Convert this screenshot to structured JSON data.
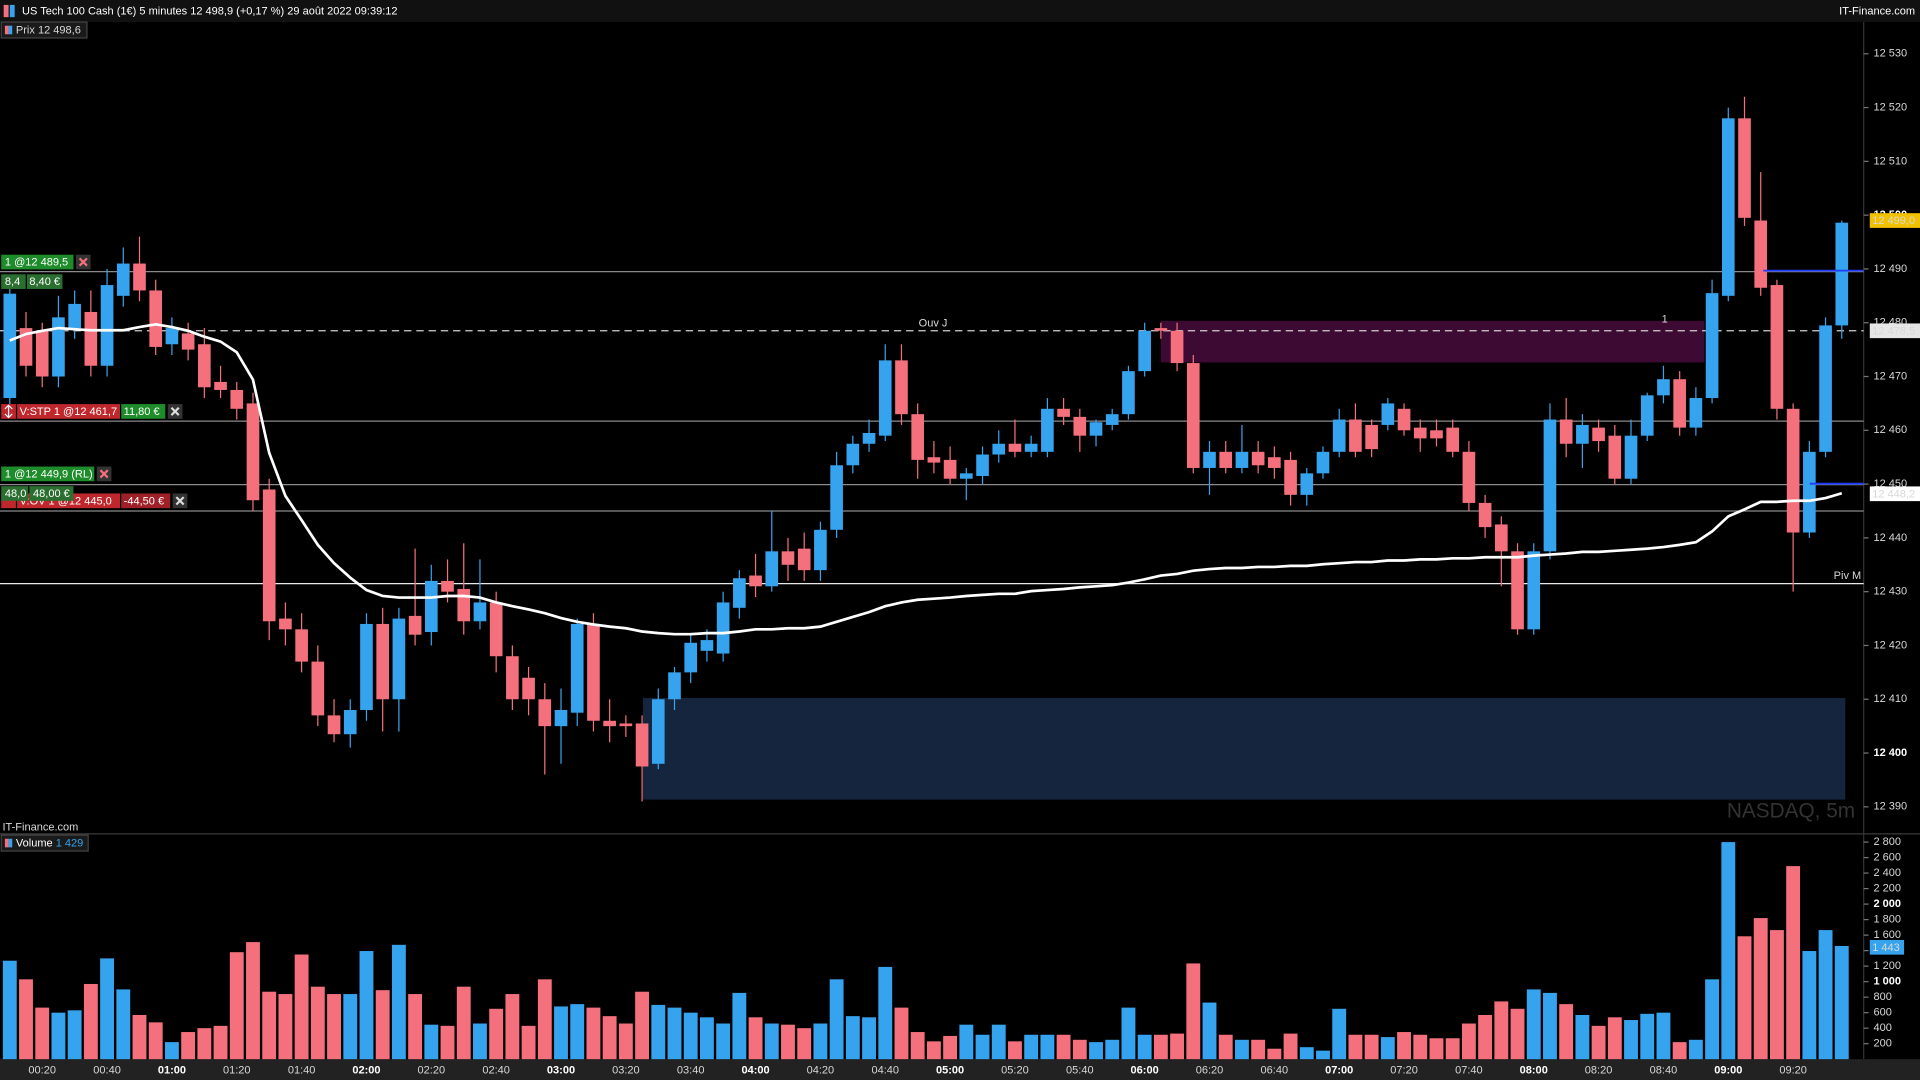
{
  "header": {
    "title": "US Tech 100 Cash (1€) 5 minutes 12 498,9 (+0,17 %) 29 août 2022 09:39:12",
    "brand": "IT-Finance.com"
  },
  "orders": [
    {
      "label": "1 @12 489,5",
      "points": "8,4",
      "amount": "8,40 €"
    },
    {
      "label": "V:STP 1 @12 461,7",
      "amount": "11,80 €"
    },
    {
      "label": "1 @12 449,9 (RL)",
      "points": "48,0",
      "amount": "48,00 €"
    },
    {
      "label": "V:OV 1 @12 445,0",
      "amount": "-44,50 €"
    }
  ],
  "chart_data": [
    {
      "type": "candlestick",
      "legend": "Prix",
      "legend_value": "12 498,6",
      "watermark": "NASDAQ, 5m",
      "source": "IT-Finance.com",
      "zone_labels": [
        "1",
        "2"
      ],
      "up_color": "#36a3ee",
      "down_color": "#f4707c",
      "open": [
        12466,
        12479,
        12478.5,
        12470,
        12479,
        12482,
        12472,
        12485,
        12491,
        12486,
        12476,
        12478,
        12476,
        12469,
        12467.5,
        12465,
        12449,
        12425,
        12423,
        12417,
        12407,
        12403.5,
        12408,
        12424,
        12410,
        12425.5,
        12422.5,
        12432,
        12430.5,
        12424.5,
        12428,
        12418,
        12414,
        12410,
        12405,
        12407.5,
        12424,
        12406,
        12405.5,
        12405.5,
        12398,
        12410,
        12415,
        12419,
        12418.5,
        12427,
        12433,
        12431,
        12437.5,
        12438,
        12434,
        12441.5,
        12453.5,
        12457.5,
        12459,
        12473,
        12463,
        12455,
        12454.5,
        12451,
        12451.5,
        12455.5,
        12457.5,
        12456,
        12456,
        12464,
        12462.5,
        12459,
        12461,
        12463,
        12471,
        12479,
        12478.5,
        12472.5,
        12453,
        12456,
        12453,
        12456,
        12455,
        12454.5,
        12448,
        12452,
        12456,
        12462,
        12461,
        12461,
        12464,
        12460.5,
        12460,
        12460.5,
        12456,
        12446.5,
        12442.5,
        12437.5,
        12423,
        12437.5,
        12462,
        12457.5,
        12460.5,
        12459,
        12451,
        12459,
        12466.5,
        12469.5,
        12460.5,
        12466,
        12485,
        12518,
        12499,
        12487,
        12464,
        12441,
        12456,
        12479.5
      ],
      "high": [
        12487,
        12482,
        12480,
        12485,
        12486,
        12486,
        12490,
        12494,
        12496,
        12488,
        12481,
        12480,
        12479,
        12472,
        12469,
        12467,
        12451,
        12428,
        12426,
        12420,
        12410,
        12410,
        12426,
        12427,
        12427,
        12438,
        12435,
        12436,
        12439,
        12436,
        12430,
        12420,
        12416,
        12413,
        12412,
        12425,
        12426,
        12410,
        12407,
        12407,
        12412,
        12416,
        12422,
        12423,
        12430,
        12434,
        12437,
        12445,
        12440,
        12441,
        12443,
        12456,
        12459,
        12462,
        12476,
        12476,
        12465,
        12458,
        12457,
        12453,
        12457,
        12460,
        12462,
        12459,
        12466,
        12466,
        12464,
        12462,
        12464,
        12472,
        12480,
        12480,
        12480,
        12474,
        12458,
        12458,
        12461,
        12458,
        12457,
        12456,
        12453,
        12457,
        12464,
        12465,
        12462,
        12466,
        12465,
        12462,
        12462,
        12462,
        12458,
        12448,
        12444,
        12439,
        12439,
        12465,
        12466,
        12463,
        12462,
        12461,
        12462,
        12467,
        12472,
        12471,
        12468,
        12488,
        12520,
        12522,
        12508,
        12488,
        12465,
        12458,
        12481,
        12499
      ],
      "low": [
        12464,
        12470,
        12468,
        12468,
        12477,
        12470,
        12470,
        12483,
        12484,
        12474,
        12474,
        12473,
        12466,
        12466,
        12462,
        12445,
        12421,
        12420,
        12415,
        12405,
        12402,
        12401,
        12406,
        12404,
        12404,
        12420,
        12420,
        12428,
        12422,
        12423,
        12415,
        12408,
        12407,
        12396,
        12398,
        12405,
        12404,
        12402,
        12403,
        12391,
        12397,
        12408,
        12413,
        12417,
        12417,
        12425,
        12429,
        12430,
        12432,
        12432,
        12432,
        12440,
        12452,
        12456,
        12458,
        12461,
        12451,
        12452,
        12450,
        12447,
        12450,
        12454,
        12455,
        12455,
        12455,
        12461,
        12456,
        12457,
        12460,
        12462,
        12470,
        12477,
        12471,
        12452,
        12448,
        12452,
        12452,
        12452,
        12451,
        12446,
        12446,
        12451,
        12455,
        12455,
        12455,
        12460,
        12459,
        12456,
        12457,
        12455,
        12445,
        12440,
        12431,
        12422,
        12422,
        12436,
        12455,
        12453,
        12456,
        12450,
        12450,
        12458,
        12465,
        12459,
        12459,
        12465,
        12484,
        12498,
        12485,
        12462,
        12430,
        12440,
        12455,
        12477
      ],
      "close": [
        12485.4,
        12472,
        12470,
        12481,
        12483.5,
        12472,
        12487,
        12491,
        12486,
        12475.5,
        12479,
        12475,
        12468,
        12467.5,
        12464,
        12447,
        12424.5,
        12423,
        12417,
        12407,
        12403.5,
        12408,
        12424,
        12410,
        12425,
        12422,
        12432,
        12430,
        12424.5,
        12428,
        12418,
        12410,
        12410,
        12405,
        12408,
        12424,
        12406,
        12405,
        12405,
        12397.5,
        12410,
        12415,
        12420.5,
        12421,
        12428,
        12432.5,
        12431,
        12437.5,
        12435,
        12434,
        12441.5,
        12453.5,
        12457.5,
        12459.5,
        12473,
        12463,
        12454.5,
        12454,
        12451,
        12452,
        12455.5,
        12457.5,
        12456,
        12457.5,
        12464,
        12462.5,
        12459,
        12461.5,
        12463,
        12471,
        12478.5,
        12478.5,
        12472.5,
        12453,
        12456,
        12453,
        12456,
        12453.5,
        12453,
        12448,
        12452,
        12456,
        12462,
        12456,
        12456.5,
        12465,
        12460,
        12458.5,
        12458.5,
        12456,
        12446.5,
        12442,
        12437.5,
        12423,
        12437.5,
        12462,
        12457.5,
        12461,
        12458,
        12451,
        12459,
        12466.5,
        12469.5,
        12460.5,
        12466,
        12485.5,
        12518,
        12499.5,
        12486.5,
        12464,
        12441,
        12456,
        12479.5,
        12498.6
      ],
      "overlays": [
        {
          "type": "line",
          "color": "#ffffff",
          "values": [
            12476.7,
            12477.9,
            12478.5,
            12479.0,
            12478.8,
            12478.6,
            12478.6,
            12478.6,
            12479.2,
            12479.7,
            12479.2,
            12478.5,
            12477.4,
            12476.5,
            12474.5,
            12469.4,
            12455.8,
            12447.8,
            12443.3,
            12438.7,
            12435.3,
            12432.6,
            12430.3,
            12429.2,
            12428.9,
            12428.9,
            12428.9,
            12429.2,
            12429.2,
            12428.9,
            12428.0,
            12427.3,
            12426.7,
            12426.0,
            12425.1,
            12424.4,
            12423.9,
            12423.5,
            12423.2,
            12422.6,
            12422.3,
            12422.1,
            12422.1,
            12422.3,
            12422.3,
            12422.6,
            12423.0,
            12423.0,
            12423.2,
            12423.2,
            12423.5,
            12424.4,
            12425.3,
            12426.2,
            12427.3,
            12428.0,
            12428.5,
            12428.7,
            12428.9,
            12429.2,
            12429.4,
            12429.6,
            12429.6,
            12430.1,
            12430.3,
            12430.5,
            12430.8,
            12431.0,
            12431.2,
            12431.7,
            12432.3,
            12433.0,
            12433.3,
            12433.9,
            12434.2,
            12434.4,
            12434.4,
            12434.6,
            12434.6,
            12434.8,
            12434.8,
            12435.1,
            12435.3,
            12435.5,
            12435.5,
            12435.8,
            12435.8,
            12436.0,
            12436.0,
            12436.2,
            12436.2,
            12436.4,
            12436.4,
            12436.4,
            12436.7,
            12436.9,
            12437.1,
            12437.4,
            12437.4,
            12437.6,
            12437.8,
            12438.0,
            12438.3,
            12438.7,
            12439.2,
            12441.2,
            12444.0,
            12445.3,
            12446.7,
            12446.7,
            12446.9,
            12446.9,
            12447.4,
            12448.3
          ]
        }
      ],
      "levels": [
        {
          "value": 12489.5,
          "color": "#8a8a8a"
        },
        {
          "label": "Ouv J",
          "value": 12478.5,
          "color": "#d0d0d0",
          "dashed": true
        },
        {
          "value": 12461.7,
          "color": "#8a8a8a"
        },
        {
          "value": 12449.9,
          "color": "#8a8a8a"
        },
        {
          "value": 12445.0,
          "color": "#8a8a8a"
        },
        {
          "label": "Piv M",
          "value": 12431.5,
          "color": "#e8e8e8"
        }
      ],
      "price_labels": [
        {
          "value": 12499.0,
          "label": "12 499,0",
          "color": "#f2c200"
        },
        {
          "value": 12478.5,
          "label": "12 478,5",
          "color": "#e6e6e6"
        },
        {
          "value": 12448.2,
          "label": "12 448,2",
          "color": "#ffffff"
        }
      ],
      "ylim": [
        12385.2,
        12535.9
      ],
      "yticks": [
        {
          "value": 12390,
          "label": "12 390"
        },
        {
          "value": 12400,
          "label": "12 400"
        },
        {
          "value": 12410,
          "label": "12 410"
        },
        {
          "value": 12420,
          "label": "12 420"
        },
        {
          "value": 12430,
          "label": "12 430"
        },
        {
          "value": 12440,
          "label": "12 440"
        },
        {
          "value": 12450,
          "label": "12 450"
        },
        {
          "value": 12460,
          "label": "12 460"
        },
        {
          "value": 12470,
          "label": "12 470"
        },
        {
          "value": 12480,
          "label": "12 480"
        },
        {
          "value": 12490,
          "label": "12 490"
        },
        {
          "value": 12500,
          "label": "12 500"
        },
        {
          "value": 12510,
          "label": "12 510"
        },
        {
          "value": 12520,
          "label": "12 520"
        },
        {
          "value": 12530,
          "label": "12 530"
        }
      ],
      "grid": false
    },
    {
      "type": "bar",
      "legend_value": "1 429",
      "series": [
        {
          "name": "Volume",
          "color": "#36a3ee",
          "values": [
            1270,
            1030,
            665,
            600,
            630,
            970,
            1300,
            900,
            570,
            475,
            220,
            350,
            400,
            430,
            1380,
            1510,
            870,
            840,
            1350,
            935,
            840,
            840,
            1395,
            890,
            1475,
            840,
            445,
            430,
            935,
            460,
            650,
            840,
            430,
            1030,
            680,
            710,
            665,
            555,
            460,
            870,
            700,
            665,
            600,
            540,
            460,
            855,
            540,
            460,
            445,
            400,
            460,
            1030,
            555,
            540,
            1190,
            665,
            350,
            230,
            300,
            445,
            315,
            445,
            230,
            315,
            315,
            315,
            250,
            220,
            250,
            665,
            315,
            315,
            330,
            1235,
            730,
            315,
            250,
            250,
            135,
            330,
            155,
            110,
            650,
            315,
            315,
            285,
            350,
            315,
            270,
            270,
            460,
            570,
            745,
            650,
            900,
            855,
            710,
            570,
            430,
            540,
            505,
            585,
            600,
            220,
            250,
            1030,
            2800,
            1585,
            1820,
            1665,
            2490,
            1395,
            1665,
            1460
          ]
        }
      ],
      "categories": [
        null,
        null,
        "00:20",
        null,
        null,
        null,
        "00:40",
        null,
        null,
        null,
        "01:00",
        null,
        null,
        null,
        "01:20",
        null,
        null,
        null,
        "01:40",
        null,
        null,
        null,
        "02:00",
        null,
        null,
        null,
        "02:20",
        null,
        null,
        null,
        "02:40",
        null,
        null,
        null,
        "03:00",
        null,
        null,
        null,
        "03:20",
        null,
        null,
        null,
        "03:40",
        null,
        null,
        null,
        "04:00",
        null,
        null,
        null,
        "04:20",
        null,
        null,
        null,
        "04:40",
        null,
        null,
        null,
        "05:00",
        null,
        null,
        null,
        "05:20",
        null,
        null,
        null,
        "05:40",
        null,
        null,
        null,
        "06:00",
        null,
        null,
        null,
        "06:20",
        null,
        null,
        null,
        "06:40",
        null,
        null,
        null,
        "07:00",
        null,
        null,
        null,
        "07:20",
        null,
        null,
        null,
        "07:40",
        null,
        null,
        null,
        "08:00",
        null,
        null,
        null,
        "08:20",
        null,
        null,
        null,
        "08:40",
        null,
        null,
        null,
        "09:00",
        null,
        null,
        null,
        "09:20",
        null,
        null,
        null
      ],
      "marker": {
        "value": 1443,
        "label": "1 443",
        "color": "#36a3ee"
      },
      "ylim": [
        0,
        2890
      ],
      "yticks": [
        200,
        400,
        600,
        800,
        {
          "value": 1000,
          "label": "1 000"
        },
        {
          "value": 1200,
          "label": "1 200"
        },
        {
          "value": 1400,
          "label": "1 400"
        },
        {
          "value": 1600,
          "label": "1 600"
        },
        {
          "value": 1800,
          "label": "1 800"
        },
        {
          "value": 2000,
          "label": "2 000"
        },
        {
          "value": 2200,
          "label": "2 200"
        },
        {
          "value": 2400,
          "label": "2 400"
        },
        {
          "value": 2600,
          "label": "2 600"
        },
        {
          "value": 2800,
          "label": "2 800"
        }
      ],
      "grid": false
    }
  ]
}
